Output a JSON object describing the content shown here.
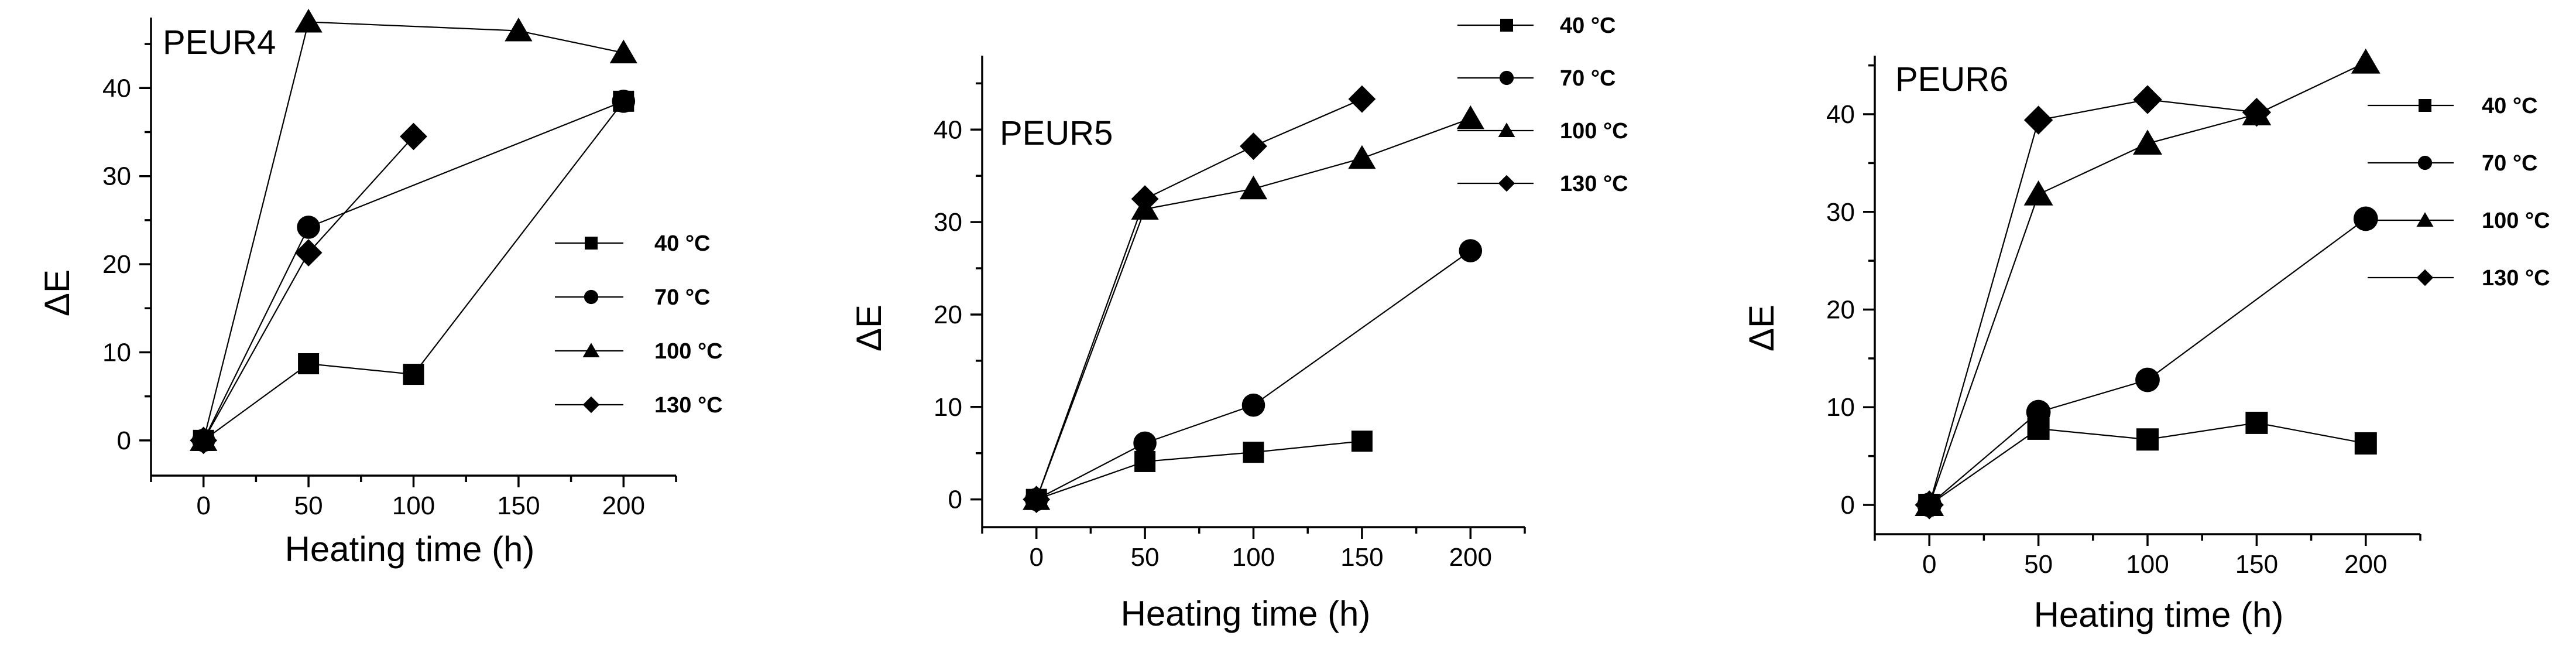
{
  "chart_data": [
    {
      "type": "line",
      "title": "PEUR4",
      "xlabel": "Heating time (h)",
      "ylabel": "ΔE",
      "xlim": [
        -25,
        225
      ],
      "ylim": [
        -4,
        48
      ],
      "xticks": [
        0,
        50,
        100,
        150,
        200
      ],
      "yticks": [
        0,
        10,
        20,
        30,
        40
      ],
      "tick_labels_x": [
        "0",
        "50",
        "100",
        "150",
        "200"
      ],
      "tick_labels_y": [
        "0",
        "10",
        "20",
        "30",
        "40"
      ],
      "legend_position": "right-middle",
      "series": [
        {
          "name": "40 °C",
          "marker": "square",
          "x": [
            0,
            50,
            100,
            200
          ],
          "y": [
            0,
            8.7,
            7.5,
            38.5
          ]
        },
        {
          "name": "70 °C",
          "marker": "circle",
          "x": [
            0,
            50,
            200
          ],
          "y": [
            0,
            24.2,
            38.5
          ]
        },
        {
          "name": "100 °C",
          "marker": "triangle",
          "x": [
            0,
            50,
            150,
            200
          ],
          "y": [
            0,
            47.5,
            46.5,
            44
          ]
        },
        {
          "name": "130 °C",
          "marker": "diamond",
          "x": [
            0,
            50,
            100
          ],
          "y": [
            0,
            21.3,
            34.5
          ]
        }
      ]
    },
    {
      "type": "line",
      "title": "PEUR5",
      "xlabel": "Heating time (h)",
      "ylabel": "ΔE",
      "xlim": [
        -25,
        225
      ],
      "ylim": [
        -3,
        48
      ],
      "xticks": [
        0,
        50,
        100,
        150,
        200
      ],
      "yticks": [
        0,
        10,
        20,
        30,
        40
      ],
      "tick_labels_x": [
        "0",
        "50",
        "100",
        "150",
        "200"
      ],
      "tick_labels_y": [
        "0",
        "10",
        "20",
        "30",
        "40"
      ],
      "legend_position": "top-right",
      "series": [
        {
          "name": "40 °C",
          "marker": "square",
          "x": [
            0,
            50,
            100,
            150
          ],
          "y": [
            0,
            4.1,
            5.1,
            6.3
          ]
        },
        {
          "name": "70 °C",
          "marker": "circle",
          "x": [
            0,
            50,
            100,
            200
          ],
          "y": [
            0,
            6.1,
            10.2,
            26.9
          ]
        },
        {
          "name": "100 °C",
          "marker": "triangle",
          "x": [
            0,
            50,
            100,
            150,
            200
          ],
          "y": [
            0,
            31.4,
            33.6,
            36.9,
            41.2
          ]
        },
        {
          "name": "130 °C",
          "marker": "diamond",
          "x": [
            0,
            50,
            100,
            150
          ],
          "y": [
            0,
            32.5,
            38.2,
            43.3
          ]
        }
      ]
    },
    {
      "type": "line",
      "title": "PEUR6",
      "xlabel": "Heating time (h)",
      "ylabel": "ΔE",
      "xlim": [
        -25,
        225
      ],
      "ylim": [
        -3,
        46
      ],
      "xticks": [
        0,
        50,
        100,
        150,
        200
      ],
      "yticks": [
        0,
        10,
        20,
        30,
        40
      ],
      "tick_labels_x": [
        "0",
        "50",
        "100",
        "150",
        "200"
      ],
      "tick_labels_y": [
        "0",
        "10",
        "20",
        "30",
        "40"
      ],
      "legend_position": "right",
      "series": [
        {
          "name": "40 °C",
          "marker": "square",
          "x": [
            0,
            50,
            100,
            150,
            200
          ],
          "y": [
            0,
            7.8,
            6.7,
            8.4,
            6.3
          ]
        },
        {
          "name": "70 °C",
          "marker": "circle",
          "x": [
            0,
            50,
            100,
            200
          ],
          "y": [
            0,
            9.5,
            12.8,
            29.3
          ]
        },
        {
          "name": "100 °C",
          "marker": "triangle",
          "x": [
            0,
            50,
            100,
            150,
            200
          ],
          "y": [
            0,
            31.8,
            37,
            40,
            45.3
          ]
        },
        {
          "name": "130 °C",
          "marker": "diamond",
          "x": [
            0,
            50,
            100,
            150
          ],
          "y": [
            0,
            39.4,
            41.5,
            40.2
          ]
        }
      ]
    }
  ]
}
